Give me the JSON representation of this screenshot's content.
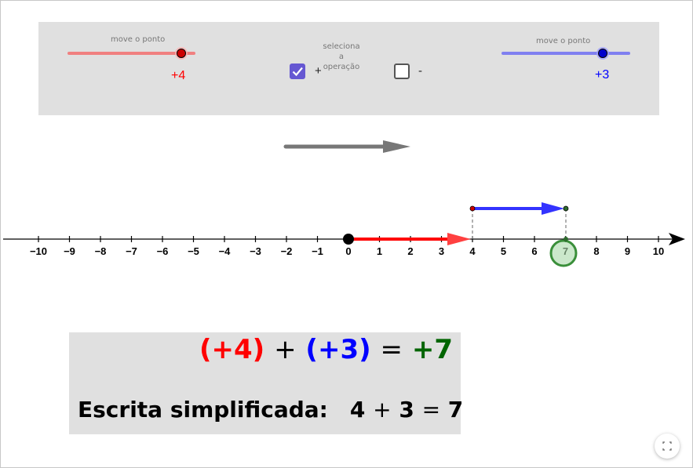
{
  "controls": {
    "slider_left": {
      "caption": "move o ponto",
      "value_label": "+4",
      "value": 4,
      "color": "#ff0000",
      "track_color": "#f08080"
    },
    "selector_caption_line1": "seleciona a",
    "selector_caption_line2": "operação",
    "plus_checkbox": {
      "label": "+",
      "checked": true
    },
    "minus_checkbox": {
      "label": "-",
      "checked": false
    },
    "slider_right": {
      "caption": "move o ponto",
      "value_label": "+3",
      "value": 3,
      "color": "#0000ff",
      "track_color": "#8080f0"
    }
  },
  "number_line": {
    "min": -10,
    "max": 10,
    "ticks": [
      "−10",
      "−9",
      "−8",
      "−7",
      "−6",
      "−5",
      "−4",
      "−3",
      "−2",
      "−1",
      "0",
      "1",
      "2",
      "3",
      "4",
      "5",
      "6",
      "7",
      "8",
      "9",
      "10"
    ],
    "origin_value": 0,
    "first_value": 4,
    "second_value": 3,
    "result_value": 7,
    "first_color": "#ff0000",
    "second_color": "#3333ff",
    "result_color": "#2e8b2e",
    "direction_arrow_color": "#777777"
  },
  "equation": {
    "term1": "(+4)",
    "op": "+",
    "term2": "(+3)",
    "eq": "=",
    "result": "+7",
    "term1_color": "#ff0000",
    "term2_color": "#0000ff",
    "result_color": "#006400"
  },
  "simplified": {
    "label": "Escrita simplificada:",
    "a": "4",
    "op": "+",
    "b": "3",
    "eq": "=",
    "result": "7"
  },
  "fullscreen": {
    "icon": "fullscreen-icon"
  }
}
